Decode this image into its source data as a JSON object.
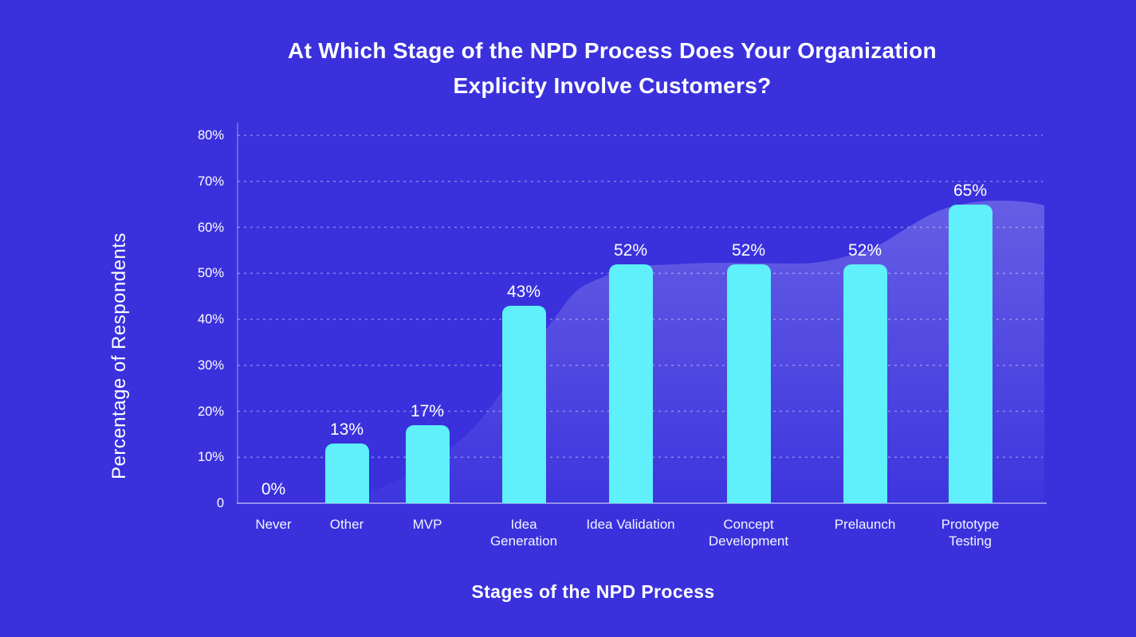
{
  "page": {
    "background_color": "#3A31DD",
    "accent_color": "#5FF0FB",
    "text_color": "#FFFFFF"
  },
  "title": {
    "line1": "At Which Stage of the NPD Process Does Your Organization",
    "line2": "Explicity Involve Customers?"
  },
  "chart_data": {
    "type": "bar",
    "title": "At Which Stage of the NPD Process Does Your Organization Explicity Involve Customers?",
    "xlabel": "Stages of the NPD Process",
    "ylabel": "Percentage of Respondents",
    "categories": [
      "Never",
      "Other",
      "MVP",
      "Idea Generation",
      "Idea Validation",
      "Concept Development",
      "Prelaunch",
      "Prototype Testing"
    ],
    "values": [
      0,
      13,
      17,
      43,
      52,
      52,
      52,
      65
    ],
    "value_labels": [
      "0%",
      "13%",
      "17%",
      "43%",
      "52%",
      "52%",
      "52%",
      "65%"
    ],
    "y_ticks": [
      {
        "label": "80%",
        "value": 80
      },
      {
        "label": "70%",
        "value": 70
      },
      {
        "label": "60%",
        "value": 60
      },
      {
        "label": "50%",
        "value": 50
      },
      {
        "label": "40%",
        "value": 40
      },
      {
        "label": "30%",
        "value": 30
      },
      {
        "label": "20%",
        "value": 20
      },
      {
        "label": "10%",
        "value": 10
      },
      {
        "label": "0",
        "value": 0
      }
    ],
    "ylim": [
      0,
      80
    ],
    "grid": "horizontal dashed white lines at every 10%",
    "legend_position": "none",
    "bar_color": "#5FF0FB",
    "background_color": "#3A31DD",
    "text_color": "#FFFFFF",
    "area_overlay": "translucent smooth area silhouette behind the bars rising from left to right, peaking behind Prototype Testing"
  }
}
